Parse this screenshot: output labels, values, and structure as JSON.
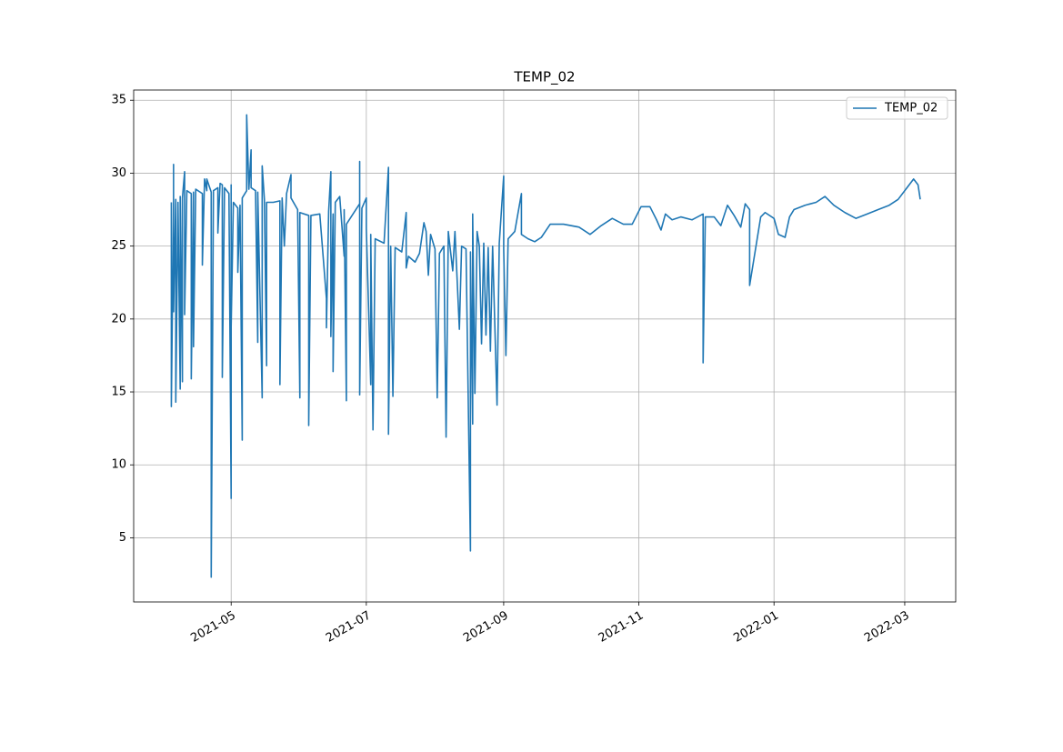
{
  "chart_data": {
    "type": "line",
    "title": "TEMP_02",
    "x": [
      "2021-04-04",
      "2021-04-04",
      "2021-04-05",
      "2021-04-05",
      "2021-04-05",
      "2021-04-06",
      "2021-04-06",
      "2021-04-07",
      "2021-04-08",
      "2021-04-08",
      "2021-04-09",
      "2021-04-09",
      "2021-04-10",
      "2021-04-10",
      "2021-04-11",
      "2021-04-13",
      "2021-04-13",
      "2021-04-14",
      "2021-04-14",
      "2021-04-15",
      "2021-04-18",
      "2021-04-18",
      "2021-04-19",
      "2021-04-20",
      "2021-04-20",
      "2021-04-22",
      "2021-04-22",
      "2021-04-23",
      "2021-04-25",
      "2021-04-25",
      "2021-04-26",
      "2021-04-27",
      "2021-04-27",
      "2021-04-28",
      "2021-04-30",
      "2021-05-01",
      "2021-05-01",
      "2021-05-01",
      "2021-05-02",
      "2021-05-04",
      "2021-05-04",
      "2021-05-05",
      "2021-05-06",
      "2021-05-06",
      "2021-05-08",
      "2021-05-08",
      "2021-05-09",
      "2021-05-10",
      "2021-05-10",
      "2021-05-12",
      "2021-05-13",
      "2021-05-13",
      "2021-05-15",
      "2021-05-15",
      "2021-05-16",
      "2021-05-17",
      "2021-05-17",
      "2021-05-20",
      "2021-05-23",
      "2021-05-23",
      "2021-05-24",
      "2021-05-25",
      "2021-05-26",
      "2021-05-28",
      "2021-05-28",
      "2021-05-31",
      "2021-06-01",
      "2021-06-01",
      "2021-06-05",
      "2021-06-05",
      "2021-06-06",
      "2021-06-10",
      "2021-06-13",
      "2021-06-13",
      "2021-06-14",
      "2021-06-15",
      "2021-06-15",
      "2021-06-16",
      "2021-06-16",
      "2021-06-17",
      "2021-06-19",
      "2021-06-21",
      "2021-06-21",
      "2021-06-22",
      "2021-06-22",
      "2021-06-25",
      "2021-06-28",
      "2021-06-28",
      "2021-06-28",
      "2021-06-29",
      "2021-07-01",
      "2021-07-01",
      "2021-07-03",
      "2021-07-03",
      "2021-07-04",
      "2021-07-04",
      "2021-07-05",
      "2021-07-09",
      "2021-07-11",
      "2021-07-11",
      "2021-07-12",
      "2021-07-13",
      "2021-07-14",
      "2021-07-17",
      "2021-07-19",
      "2021-07-19",
      "2021-07-20",
      "2021-07-23",
      "2021-07-25",
      "2021-07-27",
      "2021-07-28",
      "2021-07-29",
      "2021-07-30",
      "2021-08-01",
      "2021-08-02",
      "2021-08-03",
      "2021-08-05",
      "2021-08-06",
      "2021-08-07",
      "2021-08-09",
      "2021-08-10",
      "2021-08-12",
      "2021-08-13",
      "2021-08-15",
      "2021-08-17",
      "2021-08-17",
      "2021-08-18",
      "2021-08-18",
      "2021-08-19",
      "2021-08-20",
      "2021-08-21",
      "2021-08-22",
      "2021-08-23",
      "2021-08-24",
      "2021-08-25",
      "2021-08-26",
      "2021-08-27",
      "2021-08-29",
      "2021-08-30",
      "2021-09-01",
      "2021-09-01",
      "2021-09-02",
      "2021-09-03",
      "2021-09-06",
      "2021-09-09",
      "2021-09-09",
      "2021-09-12",
      "2021-09-15",
      "2021-09-18",
      "2021-09-22",
      "2021-09-28",
      "2021-10-05",
      "2021-10-10",
      "2021-10-15",
      "2021-10-20",
      "2021-10-25",
      "2021-10-29",
      "2021-11-02",
      "2021-11-06",
      "2021-11-09",
      "2021-11-11",
      "2021-11-13",
      "2021-11-16",
      "2021-11-20",
      "2021-11-25",
      "2021-11-30",
      "2021-11-30",
      "2021-12-01",
      "2021-12-05",
      "2021-12-08",
      "2021-12-11",
      "2021-12-14",
      "2021-12-17",
      "2021-12-19",
      "2021-12-21",
      "2021-12-21",
      "2021-12-26",
      "2021-12-28",
      "2022-01-01",
      "2022-01-03",
      "2022-01-06",
      "2022-01-08",
      "2022-01-10",
      "2022-01-15",
      "2022-01-20",
      "2022-01-24",
      "2022-01-28",
      "2022-02-02",
      "2022-02-07",
      "2022-02-12",
      "2022-02-17",
      "2022-02-22",
      "2022-02-26",
      "2022-03-02",
      "2022-03-05",
      "2022-03-07",
      "2022-03-08"
    ],
    "series": [
      {
        "name": "TEMP_02",
        "color": "#1f77b4",
        "values": [
          28.0,
          14.0,
          28.1,
          30.6,
          20.5,
          28.2,
          14.3,
          28.0,
          15.2,
          28.4,
          15.7,
          28.3,
          30.1,
          20.3,
          28.8,
          28.6,
          15.9,
          28.7,
          18.1,
          28.9,
          28.6,
          23.7,
          29.6,
          28.8,
          29.6,
          28.7,
          2.3,
          28.8,
          29.0,
          25.9,
          29.3,
          29.2,
          16.0,
          29.0,
          28.6,
          7.7,
          29.2,
          19.5,
          28.0,
          27.6,
          23.2,
          27.8,
          11.7,
          28.3,
          28.8,
          34.0,
          28.9,
          31.6,
          29.0,
          28.8,
          18.4,
          28.7,
          14.6,
          30.5,
          28.2,
          16.8,
          28.0,
          28.0,
          28.1,
          15.5,
          28.3,
          25.0,
          28.6,
          29.9,
          28.3,
          27.5,
          14.6,
          27.3,
          27.1,
          12.7,
          27.1,
          27.2,
          21.4,
          19.4,
          27.4,
          30.1,
          18.8,
          27.2,
          16.4,
          28.0,
          28.4,
          24.3,
          27.5,
          14.4,
          26.5,
          27.2,
          27.9,
          30.8,
          14.8,
          27.6,
          28.3,
          26.2,
          15.5,
          25.8,
          12.6,
          12.4,
          25.5,
          25.2,
          30.4,
          12.1,
          25.0,
          14.7,
          24.9,
          24.6,
          27.3,
          23.5,
          24.3,
          23.9,
          24.5,
          26.6,
          26.0,
          23.0,
          25.8,
          24.8,
          14.6,
          24.5,
          25.0,
          11.9,
          26.0,
          23.3,
          26.0,
          19.3,
          25.0,
          24.8,
          4.1,
          24.6,
          12.8,
          27.2,
          14.9,
          26.0,
          25.0,
          18.3,
          25.2,
          18.9,
          24.9,
          17.8,
          25.0,
          14.1,
          25.2,
          29.8,
          24.8,
          17.5,
          25.5,
          26.0,
          28.6,
          25.8,
          25.5,
          25.3,
          25.6,
          26.5,
          26.5,
          26.3,
          25.8,
          26.4,
          26.9,
          26.5,
          26.5,
          27.7,
          27.7,
          26.8,
          26.1,
          27.2,
          26.8,
          27.0,
          26.8,
          27.2,
          17.0,
          27.0,
          27.0,
          26.4,
          27.8,
          27.1,
          26.3,
          27.9,
          27.5,
          22.3,
          27.0,
          27.3,
          26.9,
          25.8,
          25.6,
          27.0,
          27.5,
          27.8,
          28.0,
          28.4,
          27.8,
          27.3,
          26.9,
          27.2,
          27.5,
          27.8,
          28.2,
          29.0,
          29.6,
          29.2,
          28.2
        ]
      }
    ],
    "xlim": [
      "2021-03-18",
      "2022-03-24"
    ],
    "xticks": [
      {
        "value": "2021-05-01",
        "label": "2021-05"
      },
      {
        "value": "2021-07-01",
        "label": "2021-07"
      },
      {
        "value": "2021-09-01",
        "label": "2021-09"
      },
      {
        "value": "2021-11-01",
        "label": "2021-11"
      },
      {
        "value": "2022-01-01",
        "label": "2022-01"
      },
      {
        "value": "2022-03-01",
        "label": "2022-03"
      }
    ],
    "ylim": [
      0.6,
      35.7
    ],
    "yticks": [
      5,
      10,
      15,
      20,
      25,
      30,
      35
    ],
    "grid": true,
    "legend": "upper right"
  }
}
